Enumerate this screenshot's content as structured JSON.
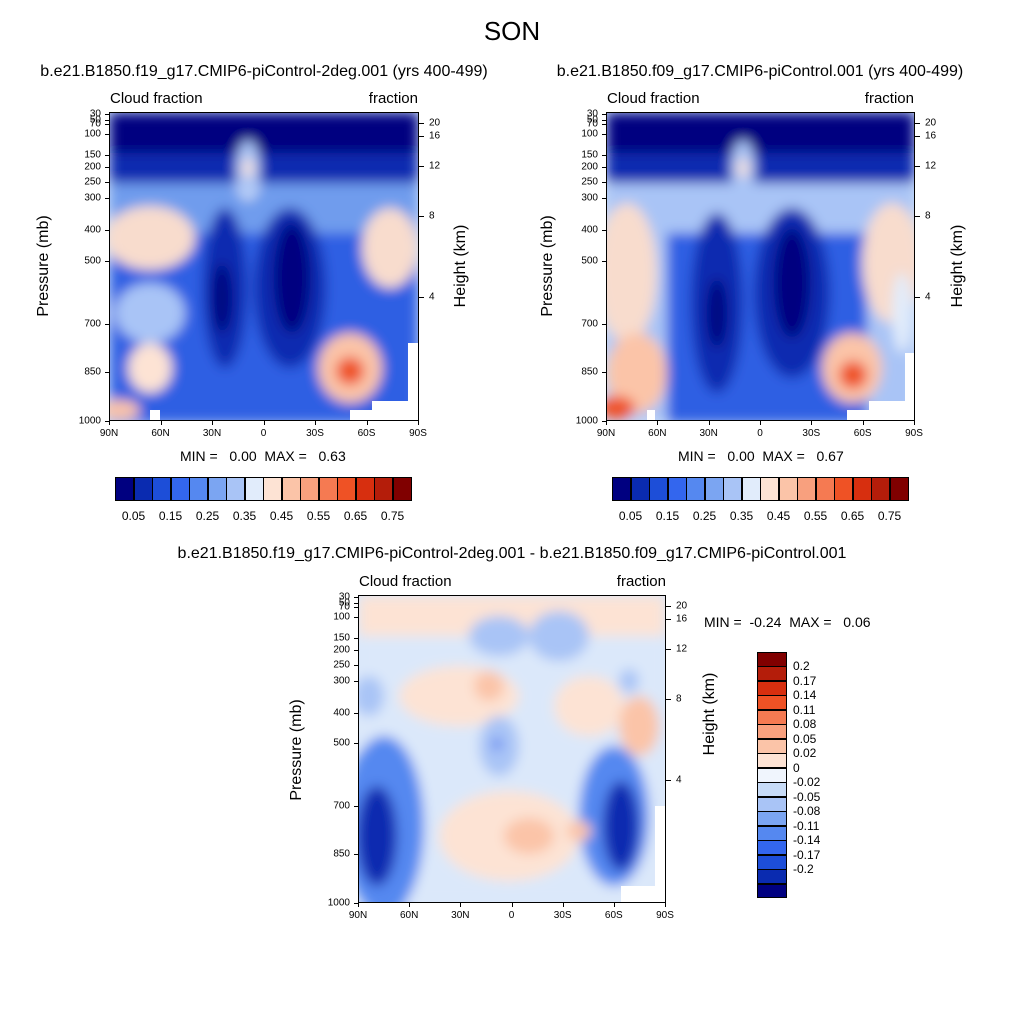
{
  "title": "SON",
  "chart_data": [
    {
      "type": "heatmap",
      "title": "b.e21.B1850.f19_g17.CMIP6-piControl-2deg.001 (yrs 400-499)",
      "left_label": "Cloud fraction",
      "right_label": "fraction",
      "ylabel": "Pressure (mb)",
      "y2label": "Height (km)",
      "x_ticks": [
        "90N",
        "60N",
        "30N",
        "0",
        "30S",
        "60S",
        "90S"
      ],
      "y_ticks": [
        "30",
        "50",
        "70",
        "100",
        "150",
        "200",
        "250",
        "300",
        "400",
        "500",
        "700",
        "850",
        "1000"
      ],
      "y2_ticks": [
        "20",
        "16",
        "12",
        "8",
        "4"
      ],
      "min_max_text": "MIN =   0.00  MAX =   0.63",
      "min": 0.0,
      "max": 0.63,
      "colorbar_labels": [
        "0.05",
        "0.15",
        "0.25",
        "0.35",
        "0.45",
        "0.55",
        "0.65",
        "0.75"
      ]
    },
    {
      "type": "heatmap",
      "title": "b.e21.B1850.f09_g17.CMIP6-piControl.001 (yrs 400-499)",
      "left_label": "Cloud fraction",
      "right_label": "fraction",
      "ylabel": "Pressure (mb)",
      "y2label": "Height (km)",
      "x_ticks": [
        "90N",
        "60N",
        "30N",
        "0",
        "30S",
        "60S",
        "90S"
      ],
      "y_ticks": [
        "30",
        "50",
        "70",
        "100",
        "150",
        "200",
        "250",
        "300",
        "400",
        "500",
        "700",
        "850",
        "1000"
      ],
      "y2_ticks": [
        "20",
        "16",
        "12",
        "8",
        "4"
      ],
      "min_max_text": "MIN =   0.00  MAX =   0.67",
      "min": 0.0,
      "max": 0.67,
      "colorbar_labels": [
        "0.05",
        "0.15",
        "0.25",
        "0.35",
        "0.45",
        "0.55",
        "0.65",
        "0.75"
      ]
    },
    {
      "type": "heatmap",
      "title": "b.e21.B1850.f19_g17.CMIP6-piControl-2deg.001 - b.e21.B1850.f09_g17.CMIP6-piControl.001",
      "left_label": "Cloud fraction",
      "right_label": "fraction",
      "ylabel": "Pressure (mb)",
      "y2label": "Height (km)",
      "x_ticks": [
        "90N",
        "60N",
        "30N",
        "0",
        "30S",
        "60S",
        "90S"
      ],
      "y_ticks": [
        "30",
        "50",
        "70",
        "100",
        "150",
        "200",
        "250",
        "300",
        "400",
        "500",
        "700",
        "850",
        "1000"
      ],
      "y2_ticks": [
        "20",
        "16",
        "12",
        "8",
        "4"
      ],
      "min_max_text": "MIN =  -0.24  MAX =   0.06",
      "min": -0.24,
      "max": 0.06,
      "colorbar_labels": [
        "0.2",
        "0.17",
        "0.14",
        "0.11",
        "0.08",
        "0.05",
        "0.02",
        "0",
        "-0.02",
        "-0.05",
        "-0.08",
        "-0.11",
        "-0.14",
        "-0.17",
        "-0.2"
      ]
    }
  ],
  "colors": {
    "field_colorbar": [
      "#000080",
      "#0a2bb0",
      "#1d4ed8",
      "#3366ee",
      "#5588f0",
      "#7ba5f2",
      "#a9c4f6",
      "#e1ecfb",
      "#fde3d4",
      "#fbc4a8",
      "#f8a07e",
      "#f57a52",
      "#ef5225",
      "#d72f0f",
      "#b41d0a",
      "#800000"
    ],
    "diff_colorbar": [
      "#800000",
      "#b41d0a",
      "#d72f0f",
      "#ef5225",
      "#f57a52",
      "#f8a07e",
      "#fbc4a8",
      "#fde3d4",
      "#f0f5fd",
      "#c7dbf7",
      "#a9c4f6",
      "#7ba5f2",
      "#5588f0",
      "#3366ee",
      "#1d4ed8",
      "#0a2bb0",
      "#000080"
    ]
  }
}
